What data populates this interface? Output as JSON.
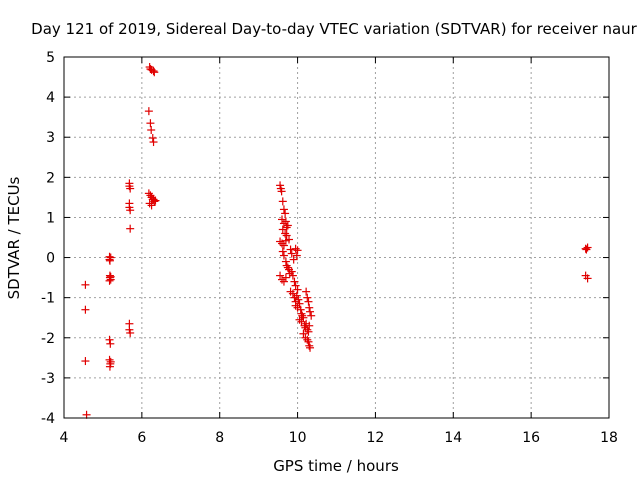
{
  "chart_data": {
    "type": "scatter",
    "title": "Day 121 of 2019, Sidereal Day-to-day VTEC variation (SDTVAR) for receiver naur",
    "xlabel": "GPS time / hours",
    "ylabel": "SDTVAR / TECUs",
    "xlim": [
      4,
      18
    ],
    "ylim": [
      -4,
      5
    ],
    "xticks": [
      "4",
      "6",
      "8",
      "10",
      "12",
      "14",
      "16",
      "18"
    ],
    "yticks": [
      "-4",
      "-3",
      "-2",
      "-1",
      "0",
      "1",
      "2",
      "3",
      "4",
      "5"
    ],
    "grid": true,
    "marker": "+",
    "color": "#e00000",
    "series": [
      {
        "name": "SDTVAR",
        "points": [
          [
            4.55,
            -0.68
          ],
          [
            4.55,
            -1.3
          ],
          [
            4.55,
            -2.58
          ],
          [
            4.58,
            -3.92
          ],
          [
            5.17,
            0.02
          ],
          [
            5.17,
            -0.05
          ],
          [
            5.18,
            -0.08
          ],
          [
            5.2,
            0.0
          ],
          [
            5.18,
            -0.45
          ],
          [
            5.18,
            -0.5
          ],
          [
            5.2,
            -0.55
          ],
          [
            5.17,
            -0.58
          ],
          [
            5.2,
            -0.48
          ],
          [
            5.17,
            -2.05
          ],
          [
            5.19,
            -2.15
          ],
          [
            5.17,
            -2.55
          ],
          [
            5.19,
            -2.65
          ],
          [
            5.18,
            -2.72
          ],
          [
            5.2,
            -2.6
          ],
          [
            5.68,
            1.85
          ],
          [
            5.68,
            1.78
          ],
          [
            5.7,
            1.72
          ],
          [
            5.68,
            1.35
          ],
          [
            5.68,
            1.25
          ],
          [
            5.7,
            1.18
          ],
          [
            5.7,
            0.72
          ],
          [
            5.68,
            -1.65
          ],
          [
            5.68,
            -1.8
          ],
          [
            5.7,
            -1.88
          ],
          [
            6.2,
            4.75
          ],
          [
            6.22,
            4.7
          ],
          [
            6.25,
            4.68
          ],
          [
            6.3,
            4.65
          ],
          [
            6.32,
            4.62
          ],
          [
            6.18,
            3.65
          ],
          [
            6.22,
            3.35
          ],
          [
            6.24,
            3.18
          ],
          [
            6.28,
            2.98
          ],
          [
            6.3,
            2.88
          ],
          [
            6.18,
            1.6
          ],
          [
            6.22,
            1.55
          ],
          [
            6.25,
            1.5
          ],
          [
            6.28,
            1.45
          ],
          [
            6.32,
            1.4
          ],
          [
            6.2,
            1.35
          ],
          [
            6.25,
            1.3
          ],
          [
            6.3,
            1.45
          ],
          [
            6.35,
            1.42
          ],
          [
            9.55,
            1.8
          ],
          [
            9.57,
            1.72
          ],
          [
            9.59,
            1.65
          ],
          [
            9.62,
            1.4
          ],
          [
            9.65,
            1.2
          ],
          [
            9.68,
            1.1
          ],
          [
            9.6,
            0.95
          ],
          [
            9.65,
            0.85
          ],
          [
            9.7,
            0.9
          ],
          [
            9.72,
            0.75
          ],
          [
            9.75,
            0.8
          ],
          [
            9.62,
            0.7
          ],
          [
            9.68,
            0.6
          ],
          [
            9.72,
            0.55
          ],
          [
            9.55,
            0.4
          ],
          [
            9.6,
            0.35
          ],
          [
            9.65,
            0.3
          ],
          [
            9.7,
            0.42
          ],
          [
            9.78,
            0.45
          ],
          [
            9.82,
            0.2
          ],
          [
            9.85,
            0.1
          ],
          [
            9.95,
            0.22
          ],
          [
            10.0,
            0.18
          ],
          [
            9.98,
            0.05
          ],
          [
            9.9,
            -0.05
          ],
          [
            9.62,
            0.15
          ],
          [
            9.65,
            0.05
          ],
          [
            9.7,
            -0.1
          ],
          [
            9.72,
            -0.2
          ],
          [
            9.75,
            -0.25
          ],
          [
            9.78,
            -0.3
          ],
          [
            9.55,
            -0.45
          ],
          [
            9.6,
            -0.55
          ],
          [
            9.65,
            -0.6
          ],
          [
            9.7,
            -0.5
          ],
          [
            9.8,
            -0.4
          ],
          [
            9.85,
            -0.35
          ],
          [
            9.88,
            -0.45
          ],
          [
            9.92,
            -0.6
          ],
          [
            9.95,
            -0.7
          ],
          [
            9.82,
            -0.85
          ],
          [
            9.88,
            -0.9
          ],
          [
            9.92,
            -1.0
          ],
          [
            9.95,
            -1.1
          ],
          [
            9.98,
            -0.95
          ],
          [
            10.0,
            -0.8
          ],
          [
            10.02,
            -1.05
          ],
          [
            9.95,
            -1.2
          ],
          [
            10.0,
            -1.25
          ],
          [
            10.05,
            -1.15
          ],
          [
            10.08,
            -1.3
          ],
          [
            10.1,
            -1.4
          ],
          [
            10.12,
            -1.45
          ],
          [
            10.05,
            -1.55
          ],
          [
            10.1,
            -1.6
          ],
          [
            10.15,
            -1.5
          ],
          [
            10.18,
            -1.7
          ],
          [
            10.2,
            -1.75
          ],
          [
            10.22,
            -1.65
          ],
          [
            10.25,
            -1.8
          ],
          [
            10.28,
            -1.85
          ],
          [
            10.3,
            -1.7
          ],
          [
            10.15,
            -1.9
          ],
          [
            10.2,
            -2.0
          ],
          [
            10.25,
            -2.05
          ],
          [
            10.28,
            -2.1
          ],
          [
            10.3,
            -2.2
          ],
          [
            10.32,
            -2.25
          ],
          [
            10.22,
            -0.85
          ],
          [
            10.25,
            -1.0
          ],
          [
            10.28,
            -1.1
          ],
          [
            10.3,
            -1.25
          ],
          [
            10.32,
            -1.35
          ],
          [
            10.35,
            -1.45
          ],
          [
            17.4,
            0.22
          ],
          [
            17.45,
            0.25
          ],
          [
            17.42,
            0.2
          ],
          [
            17.4,
            -0.45
          ],
          [
            17.45,
            -0.52
          ]
        ]
      }
    ]
  }
}
